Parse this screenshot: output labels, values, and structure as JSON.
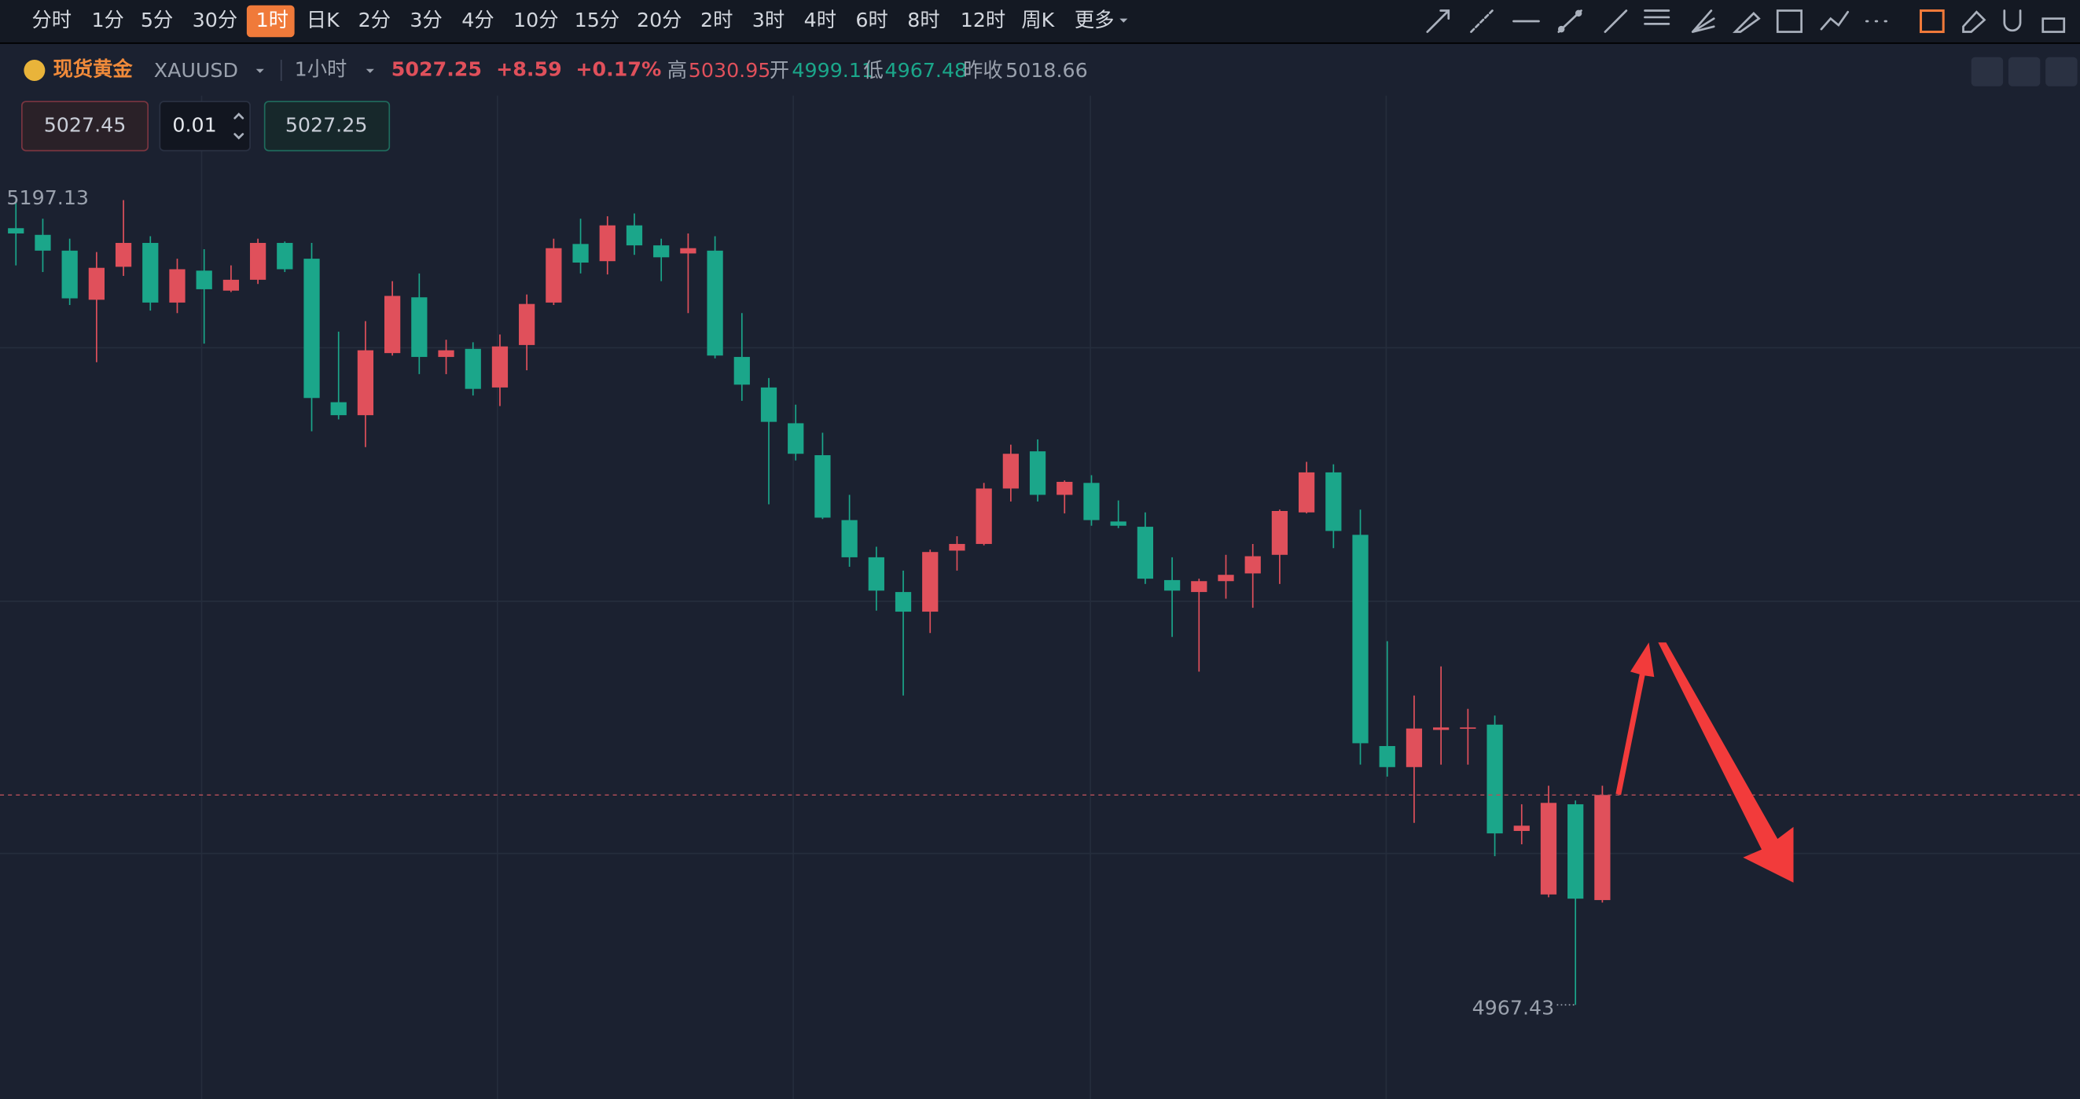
{
  "toolbar": {
    "periods": [
      "分时",
      "1分",
      "5分",
      "30分",
      "1时",
      "日K",
      "2分",
      "3分",
      "4分",
      "10分",
      "15分",
      "20分",
      "2时",
      "3时",
      "4时",
      "6时",
      "8时",
      "12时",
      "周K",
      "更多"
    ],
    "active": "1时"
  },
  "header": {
    "name": "现货黄金",
    "symbol": "XAUUSD",
    "interval": "1小时",
    "price": "5027.25",
    "change": "+8.59",
    "change_pct": "+0.17%",
    "stats": [
      {
        "label": "高",
        "value": "5030.95",
        "tone": "up"
      },
      {
        "label": "开",
        "value": "4999.11",
        "tone": "down"
      },
      {
        "label": "低",
        "value": "4967.48",
        "tone": "down"
      },
      {
        "label": "昨收",
        "value": "5018.66",
        "tone": "flat"
      }
    ]
  },
  "order": {
    "sell": "5027.45",
    "quantity": "0.01",
    "buy": "5027.25"
  },
  "chart_data": {
    "type": "candlestick",
    "up_color": "#e0505b",
    "down_color": "#1ba68a",
    "ylim": [
      4940.6,
      5226.6
    ],
    "open": [
      5188.8,
      5186.9,
      5182.4,
      5168.4,
      5177.8,
      5184.6,
      5167.6,
      5176.7,
      5171.0,
      5174.1,
      5184.6,
      5180.1,
      5139.2,
      5135.5,
      5153.2,
      5169.1,
      5152.1,
      5154.4,
      5143.4,
      5155.5,
      5167.6,
      5184.3,
      5179.4,
      5189.6,
      5183.9,
      5181.6,
      5182.4,
      5152.1,
      5143.4,
      5133.2,
      5124.1,
      5105.6,
      5095.0,
      5085.1,
      5079.5,
      5096.9,
      5098.8,
      5114.6,
      5125.2,
      5112.8,
      5116.2,
      5105.2,
      5103.7,
      5088.5,
      5085.1,
      5088.2,
      5090.4,
      5095.7,
      5107.8,
      5119.2,
      5101.4,
      5041.2,
      5035.2,
      5045.8,
      5046.2,
      5047.3,
      5017.0,
      4998.9,
      5024.6,
      4997.3
    ],
    "high": [
      5197.13,
      5191.5,
      5185.8,
      5182.0,
      5196.8,
      5186.5,
      5180.1,
      5182.8,
      5178.2,
      5185.8,
      5185.0,
      5184.6,
      5159.3,
      5162.3,
      5173.7,
      5175.9,
      5157.0,
      5156.3,
      5158.5,
      5169.9,
      5185.8,
      5191.5,
      5192.2,
      5193.0,
      5185.8,
      5187.3,
      5186.5,
      5164.6,
      5146.1,
      5138.5,
      5130.5,
      5112.8,
      5098.0,
      5091.2,
      5097.2,
      5101.0,
      5116.2,
      5127.1,
      5128.6,
      5116.9,
      5118.4,
      5111.2,
      5107.8,
      5095.0,
      5088.9,
      5095.7,
      5098.8,
      5108.6,
      5122.2,
      5121.5,
      5108.6,
      5071.1,
      5055.6,
      5063.9,
      5051.8,
      5049.9,
      5024.6,
      5029.9,
      5025.7,
      5029.9
    ],
    "low": [
      5178.2,
      5176.3,
      5166.9,
      5150.6,
      5175.2,
      5165.3,
      5164.6,
      5155.9,
      5170.6,
      5172.9,
      5176.3,
      5130.9,
      5134.3,
      5126.4,
      5152.5,
      5147.2,
      5147.2,
      5141.1,
      5138.1,
      5148.3,
      5166.9,
      5175.9,
      5175.6,
      5181.2,
      5173.7,
      5164.6,
      5151.7,
      5139.6,
      5110.1,
      5122.6,
      5105.9,
      5092.3,
      5079.8,
      5055.6,
      5073.4,
      5091.2,
      5098.4,
      5110.9,
      5110.9,
      5107.5,
      5104.0,
      5103.3,
      5087.4,
      5072.3,
      5062.4,
      5083.2,
      5080.6,
      5087.4,
      5107.5,
      5097.6,
      5035.9,
      5032.5,
      5019.3,
      5035.9,
      5035.9,
      5009.8,
      5013.2,
      4998.1,
      4967.43,
      4996.6
    ],
    "close": [
      5187.3,
      5182.4,
      5168.8,
      5177.5,
      5184.6,
      5167.6,
      5177.1,
      5171.4,
      5174.1,
      5184.6,
      5177.1,
      5140.4,
      5135.5,
      5154.0,
      5169.5,
      5152.1,
      5154.0,
      5143.0,
      5155.1,
      5167.2,
      5183.1,
      5179.0,
      5189.6,
      5183.9,
      5180.5,
      5183.1,
      5152.5,
      5144.2,
      5133.6,
      5124.5,
      5106.3,
      5095.0,
      5085.5,
      5079.5,
      5096.5,
      5098.8,
      5114.6,
      5124.5,
      5112.8,
      5116.5,
      5105.6,
      5104.0,
      5088.9,
      5085.5,
      5088.2,
      5090.0,
      5095.3,
      5108.2,
      5119.2,
      5102.5,
      5042.0,
      5035.2,
      5046.2,
      5046.5,
      5046.5,
      5016.3,
      5018.5,
      5025.0,
      4997.7,
      5027.25
    ]
  }
}
